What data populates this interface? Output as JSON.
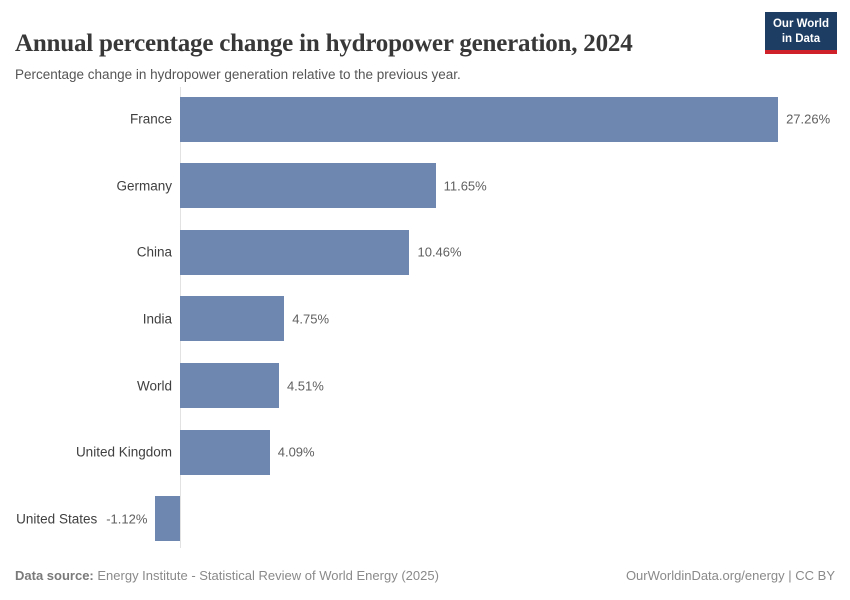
{
  "header": {
    "title": "Annual percentage change in hydropower generation, 2024",
    "subtitle": "Percentage change in hydropower generation relative to the previous year.",
    "logo": {
      "line1": "Our World",
      "line2": "in Data"
    }
  },
  "chart_data": {
    "type": "bar",
    "orientation": "horizontal",
    "title": "Annual percentage change in hydropower generation, 2024",
    "subtitle": "Percentage change in hydropower generation relative to the previous year.",
    "categories": [
      "France",
      "Germany",
      "China",
      "India",
      "World",
      "United Kingdom",
      "United States"
    ],
    "values": [
      27.26,
      11.65,
      10.46,
      4.75,
      4.51,
      4.09,
      -1.12
    ],
    "value_labels": [
      "27.26%",
      "11.65%",
      "10.46%",
      "4.75%",
      "4.51%",
      "4.09%",
      "-1.12%"
    ],
    "unit": "%",
    "xlabel": "",
    "ylabel": "",
    "xlim": [
      -1.5,
      29.9
    ],
    "grid": false,
    "legend": "none",
    "bar_color": "#6d87b1",
    "axis_color": "#e2e2e2"
  },
  "footer": {
    "datasource_label": "Data source:",
    "datasource_text": "Energy Institute - Statistical Review of World Energy (2025)",
    "license_text": "OurWorldinData.org/energy | CC BY"
  },
  "colors": {
    "bar": "#6d87b1",
    "axis": "#e2e2e2",
    "title": "#383838",
    "subtitle": "#555555",
    "country_label": "#404040",
    "value_label": "#606060",
    "footer_text": "#8a8a8a",
    "logo_bg": "#1d3d63",
    "logo_red": "#cf2129",
    "background": "#ffffff"
  }
}
